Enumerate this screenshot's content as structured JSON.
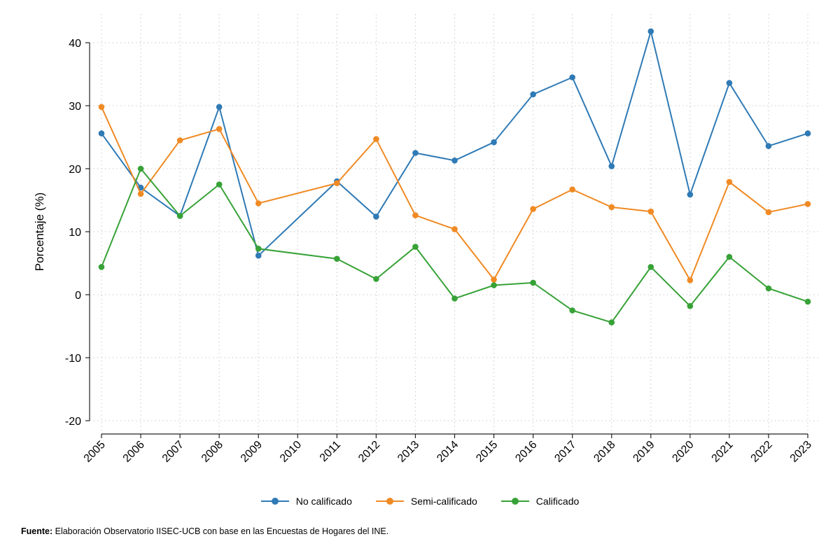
{
  "chart_data": {
    "type": "line",
    "title": "",
    "xlabel": "",
    "ylabel": "Porcentaje (%)",
    "ylim": [
      -20,
      40
    ],
    "yticks": [
      -20,
      -10,
      0,
      10,
      20,
      30,
      40
    ],
    "ytick_labels": [
      "-20",
      "-10",
      "0",
      "10",
      "20",
      "30",
      "40"
    ],
    "categories": [
      "2005",
      "2006",
      "2007",
      "2008",
      "2009",
      "2010",
      "2011",
      "2012",
      "2013",
      "2014",
      "2015",
      "2016",
      "2017",
      "2018",
      "2019",
      "2020",
      "2021",
      "2022",
      "2023"
    ],
    "grid": true,
    "legend_position": "bottom-center",
    "series": [
      {
        "name": "No calificado",
        "color": "#2f7ab5",
        "values": [
          25.6,
          17.0,
          12.5,
          29.8,
          6.2,
          null,
          18.0,
          12.4,
          22.5,
          21.3,
          24.2,
          31.8,
          34.5,
          20.4,
          41.8,
          15.9,
          33.6,
          23.6,
          25.6
        ]
      },
      {
        "name": "Semi-calificado",
        "color": "#f08a24",
        "values": [
          29.8,
          16.0,
          24.5,
          26.3,
          14.5,
          null,
          17.7,
          24.7,
          12.6,
          10.4,
          2.4,
          13.6,
          16.7,
          13.9,
          13.2,
          2.3,
          17.9,
          13.1,
          14.4
        ]
      },
      {
        "name": "Calificado",
        "color": "#37a237",
        "values": [
          4.4,
          20.0,
          12.5,
          17.5,
          7.3,
          null,
          5.7,
          2.5,
          7.6,
          -0.6,
          1.5,
          1.9,
          -2.5,
          -4.4,
          4.4,
          -1.8,
          6.0,
          1.0,
          -1.1
        ]
      }
    ]
  },
  "footer": {
    "source_label": "Fuente:",
    "source_text": " Elaboración Observatorio IISEC-UCB con base en las Encuestas de Hogares del INE."
  }
}
